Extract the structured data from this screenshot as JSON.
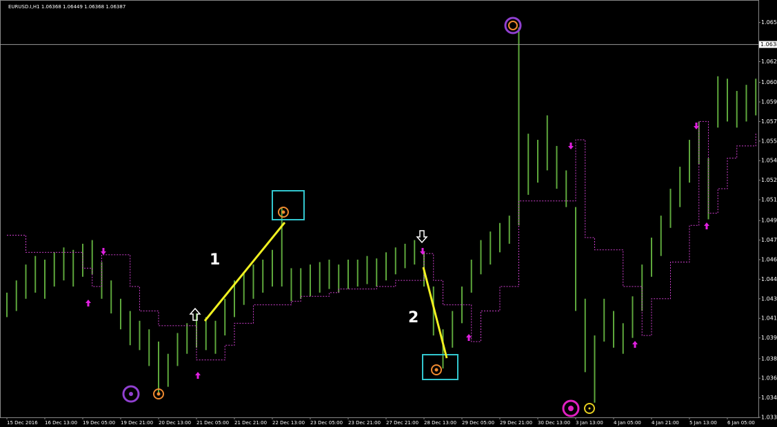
{
  "chart_data": {
    "type": "ohlc",
    "title": "EURUSD.I,H1  1.06368 1.06449 1.06368 1.06387",
    "annotations": [
      "1",
      "2"
    ],
    "categories": [
      "15 Dec 2016",
      null,
      null,
      null,
      "16 Dec 13:00",
      null,
      null,
      null,
      "19 Dec 05:00",
      null,
      null,
      null,
      "19 Dec 21:00",
      null,
      null,
      null,
      "20 Dec 13:00",
      null,
      null,
      null,
      "21 Dec 05:00",
      null,
      null,
      null,
      "21 Dec 21:00",
      null,
      null,
      null,
      "22 Dec 13:00",
      null,
      null,
      null,
      "23 Dec 05:00",
      null,
      null,
      null,
      "23 Dec 21:00",
      null,
      null,
      null,
      "27 Dec 21:00",
      null,
      null,
      null,
      "28 Dec 13:00",
      null,
      null,
      null,
      "29 Dec 05:00",
      null,
      null,
      null,
      "29 Dec 21:00",
      null,
      null,
      null,
      "30 Dec 13:00",
      null,
      null,
      null,
      "3 Jan 13:00",
      null,
      null,
      null,
      "4 Jan 05:00",
      null,
      null,
      null,
      "4 Jan 21:00",
      null,
      null,
      null,
      "5 Jan 13:00",
      null,
      null,
      null,
      "6 Jan 05:00",
      null,
      null,
      null
    ],
    "low": [
      1.0415,
      1.042,
      1.043,
      1.0435,
      1.043,
      1.044,
      1.0445,
      1.044,
      1.0448,
      1.045,
      1.043,
      1.0418,
      1.0405,
      1.0392,
      1.0388,
      1.0375,
      1.0352,
      1.0358,
      1.0375,
      1.0385,
      1.039,
      1.0388,
      1.0385,
      1.04,
      1.0415,
      1.0425,
      1.043,
      1.0435,
      1.044,
      1.044,
      1.0428,
      1.043,
      1.0432,
      1.0435,
      1.0438,
      1.0435,
      1.0438,
      1.044,
      1.0442,
      1.044,
      1.0445,
      1.045,
      1.0455,
      1.0458,
      1.044,
      1.04,
      1.0373,
      1.039,
      1.041,
      1.0435,
      1.045,
      1.0458,
      1.0468,
      1.0475,
      1.049,
      1.0515,
      1.0525,
      1.0535,
      1.052,
      1.0505,
      1.042,
      1.037,
      1.0345,
      1.0395,
      1.039,
      1.0385,
      1.0398,
      1.042,
      1.0448,
      1.0465,
      1.0488,
      1.0505,
      1.0525,
      1.054,
      1.0495,
      1.057,
      1.0575,
      1.057,
      1.0575,
      1.058
    ],
    "high": [
      1.0435,
      1.0445,
      1.0458,
      1.0465,
      1.0462,
      1.0468,
      1.0472,
      1.047,
      1.0475,
      1.0478,
      1.046,
      1.0445,
      1.043,
      1.042,
      1.0412,
      1.0405,
      1.0395,
      1.0385,
      1.0402,
      1.041,
      1.0418,
      1.0415,
      1.0412,
      1.043,
      1.0445,
      1.0452,
      1.0458,
      1.0462,
      1.047,
      1.0505,
      1.0455,
      1.0455,
      1.0458,
      1.046,
      1.0462,
      1.0458,
      1.0462,
      1.0462,
      1.0465,
      1.0463,
      1.0468,
      1.0472,
      1.0475,
      1.0478,
      1.0468,
      1.044,
      1.0405,
      1.042,
      1.044,
      1.0462,
      1.0478,
      1.0485,
      1.0492,
      1.0498,
      1.0652,
      1.0565,
      1.056,
      1.058,
      1.0555,
      1.0535,
      1.0505,
      1.043,
      1.04,
      1.043,
      1.042,
      1.041,
      1.0432,
      1.0458,
      1.048,
      1.0498,
      1.052,
      1.0538,
      1.056,
      1.0575,
      1.0545,
      1.0612,
      1.061,
      1.06,
      1.0605,
      1.061
    ],
    "trail": [
      1.0482,
      1.0482,
      1.0468,
      1.0468,
      1.0468,
      1.0468,
      1.0468,
      1.0468,
      1.0455,
      1.044,
      1.0466,
      1.0466,
      1.0466,
      1.044,
      1.042,
      1.042,
      1.0408,
      1.0408,
      1.0408,
      1.0408,
      1.038,
      1.038,
      1.038,
      1.0392,
      1.041,
      1.041,
      1.0425,
      1.0425,
      1.0425,
      1.0425,
      1.0428,
      1.0432,
      1.0432,
      1.0432,
      1.0435,
      1.0438,
      1.0438,
      1.0438,
      1.0438,
      1.044,
      1.044,
      1.0445,
      1.0445,
      1.0445,
      1.0467,
      1.0445,
      1.0425,
      1.0425,
      1.0425,
      1.0395,
      1.042,
      1.042,
      1.044,
      1.044,
      1.051,
      1.051,
      1.051,
      1.051,
      1.051,
      1.051,
      1.056,
      1.048,
      1.047,
      1.047,
      1.047,
      1.044,
      1.044,
      1.04,
      1.043,
      1.043,
      1.046,
      1.046,
      1.049,
      1.0575,
      1.05,
      1.052,
      1.0545,
      1.0555,
      1.0555,
      1.0565
    ],
    "bar_color": "#5ea83c",
    "trail_color": "#d040d0",
    "ylim": [
      1.0333,
      1.0671
    ],
    "yticks": [
      1.0656,
      1.0624,
      1.0607,
      1.0591,
      1.0575,
      1.0559,
      1.0543,
      1.0527,
      1.0511,
      1.0494,
      1.0478,
      1.0462,
      1.0446,
      {
        "value": 1.043,
        "label": "1.0430"
      },
      1.0414,
      1.0398,
      1.0381,
      1.0365,
      1.0349,
      1.0333
    ],
    "price_line": 1.0638
  }
}
